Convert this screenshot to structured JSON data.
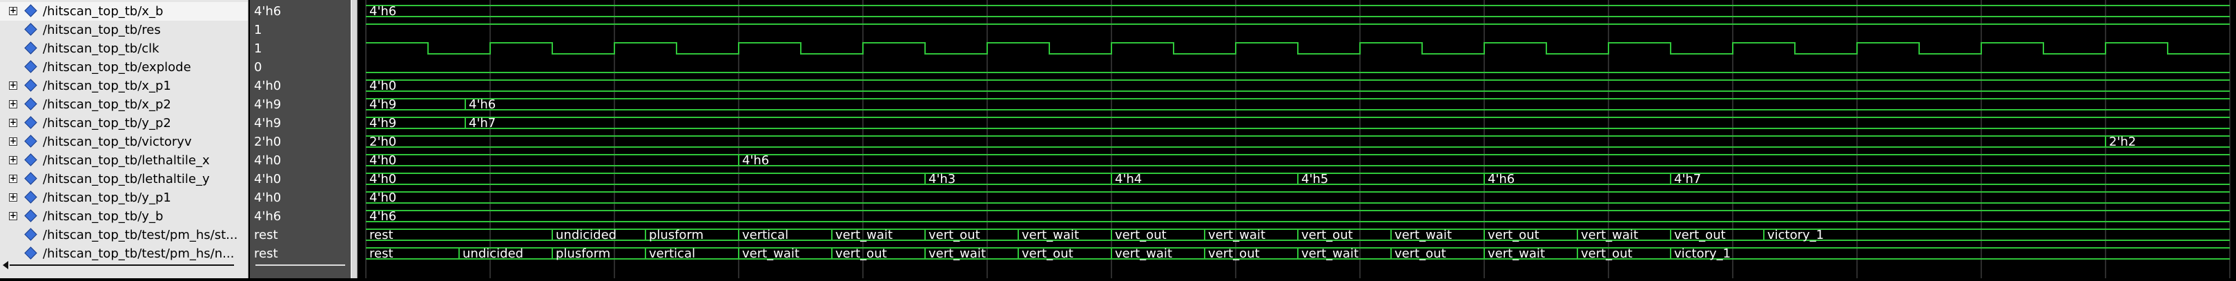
{
  "colors": {
    "wave": "#2fc63a",
    "grid": "#5a5a5a",
    "text": "#ffffff"
  },
  "time": {
    "t0": 0,
    "t1": 600,
    "period": 40
  },
  "signals": [
    {
      "name": "/hitscan_top_tb/x_b",
      "value": "4'h6",
      "expandable": true,
      "kind": "bus",
      "segments": [
        {
          "t": 0,
          "label": "4'h6"
        }
      ]
    },
    {
      "name": "/hitscan_top_tb/res",
      "value": "1",
      "expandable": false,
      "kind": "bit",
      "edges": [
        [
          0,
          1
        ]
      ]
    },
    {
      "name": "/hitscan_top_tb/clk",
      "value": "1",
      "expandable": false,
      "kind": "clock",
      "edges": [
        [
          0,
          1
        ],
        [
          20,
          0
        ],
        [
          40,
          1
        ],
        [
          60,
          0
        ],
        [
          80,
          1
        ],
        [
          100,
          0
        ],
        [
          120,
          1
        ],
        [
          140,
          0
        ],
        [
          160,
          1
        ],
        [
          180,
          0
        ],
        [
          200,
          1
        ],
        [
          220,
          0
        ],
        [
          240,
          1
        ],
        [
          260,
          0
        ],
        [
          280,
          1
        ],
        [
          300,
          0
        ],
        [
          320,
          1
        ],
        [
          340,
          0
        ],
        [
          360,
          1
        ],
        [
          380,
          0
        ],
        [
          400,
          1
        ],
        [
          420,
          0
        ],
        [
          440,
          1
        ],
        [
          460,
          0
        ],
        [
          480,
          1
        ],
        [
          500,
          0
        ],
        [
          520,
          1
        ],
        [
          540,
          0
        ],
        [
          560,
          1
        ],
        [
          580,
          0
        ]
      ]
    },
    {
      "name": "/hitscan_top_tb/explode",
      "value": "0",
      "expandable": false,
      "kind": "bit",
      "edges": [
        [
          0,
          0
        ]
      ]
    },
    {
      "name": "/hitscan_top_tb/x_p1",
      "value": "4'h0",
      "expandable": true,
      "kind": "bus",
      "segments": [
        {
          "t": 0,
          "label": "4'h0"
        }
      ]
    },
    {
      "name": "/hitscan_top_tb/x_p2",
      "value": "4'h9",
      "expandable": true,
      "kind": "bus",
      "segments": [
        {
          "t": 0,
          "label": "4'h9"
        },
        {
          "t": 32,
          "label": "4'h6"
        }
      ]
    },
    {
      "name": "/hitscan_top_tb/y_p2",
      "value": "4'h9",
      "expandable": true,
      "kind": "bus",
      "segments": [
        {
          "t": 0,
          "label": "4'h9"
        },
        {
          "t": 32,
          "label": "4'h7"
        }
      ]
    },
    {
      "name": "/hitscan_top_tb/victoryv",
      "value": "2'h0",
      "expandable": true,
      "kind": "bus",
      "segments": [
        {
          "t": 0,
          "label": "2'h0"
        },
        {
          "t": 560,
          "label": "2'h2"
        }
      ]
    },
    {
      "name": "/hitscan_top_tb/lethaltile_x",
      "value": "4'h0",
      "expandable": true,
      "kind": "bus",
      "segments": [
        {
          "t": 0,
          "label": "4'h0"
        },
        {
          "t": 120,
          "label": "4'h6"
        }
      ]
    },
    {
      "name": "/hitscan_top_tb/lethaltile_y",
      "value": "4'h0",
      "expandable": true,
      "kind": "bus",
      "segments": [
        {
          "t": 0,
          "label": "4'h0"
        },
        {
          "t": 180,
          "label": "4'h3"
        },
        {
          "t": 240,
          "label": "4'h4"
        },
        {
          "t": 300,
          "label": "4'h5"
        },
        {
          "t": 360,
          "label": "4'h6"
        },
        {
          "t": 420,
          "label": "4'h7"
        }
      ]
    },
    {
      "name": "/hitscan_top_tb/y_p1",
      "value": "4'h0",
      "expandable": true,
      "kind": "bus",
      "segments": [
        {
          "t": 0,
          "label": "4'h0"
        }
      ]
    },
    {
      "name": "/hitscan_top_tb/y_b",
      "value": "4'h6",
      "expandable": true,
      "kind": "bus",
      "segments": [
        {
          "t": 0,
          "label": "4'h6"
        }
      ]
    },
    {
      "name": "/hitscan_top_tb/test/pm_hs/st...",
      "value": "rest",
      "expandable": false,
      "kind": "bus",
      "segments": [
        {
          "t": 0,
          "label": "rest"
        },
        {
          "t": 60,
          "label": "undicided"
        },
        {
          "t": 90,
          "label": "plusform"
        },
        {
          "t": 120,
          "label": "vertical"
        },
        {
          "t": 150,
          "label": "vert_wait"
        },
        {
          "t": 180,
          "label": "vert_out"
        },
        {
          "t": 210,
          "label": "vert_wait"
        },
        {
          "t": 240,
          "label": "vert_out"
        },
        {
          "t": 270,
          "label": "vert_wait"
        },
        {
          "t": 300,
          "label": "vert_out"
        },
        {
          "t": 330,
          "label": "vert_wait"
        },
        {
          "t": 360,
          "label": "vert_out"
        },
        {
          "t": 390,
          "label": "vert_wait"
        },
        {
          "t": 420,
          "label": "vert_out"
        },
        {
          "t": 450,
          "label": "victory_1"
        }
      ]
    },
    {
      "name": "/hitscan_top_tb/test/pm_hs/n...",
      "value": "rest",
      "expandable": false,
      "kind": "bus",
      "segments": [
        {
          "t": 0,
          "label": "rest"
        },
        {
          "t": 30,
          "label": "undicided"
        },
        {
          "t": 60,
          "label": "plusform"
        },
        {
          "t": 90,
          "label": "vertical"
        },
        {
          "t": 120,
          "label": "vert_wait"
        },
        {
          "t": 150,
          "label": "vert_out"
        },
        {
          "t": 180,
          "label": "vert_wait"
        },
        {
          "t": 210,
          "label": "vert_out"
        },
        {
          "t": 240,
          "label": "vert_wait"
        },
        {
          "t": 270,
          "label": "vert_out"
        },
        {
          "t": 300,
          "label": "vert_wait"
        },
        {
          "t": 330,
          "label": "vert_out"
        },
        {
          "t": 360,
          "label": "vert_wait"
        },
        {
          "t": 390,
          "label": "vert_out"
        },
        {
          "t": 420,
          "label": "victory_1"
        }
      ]
    }
  ]
}
